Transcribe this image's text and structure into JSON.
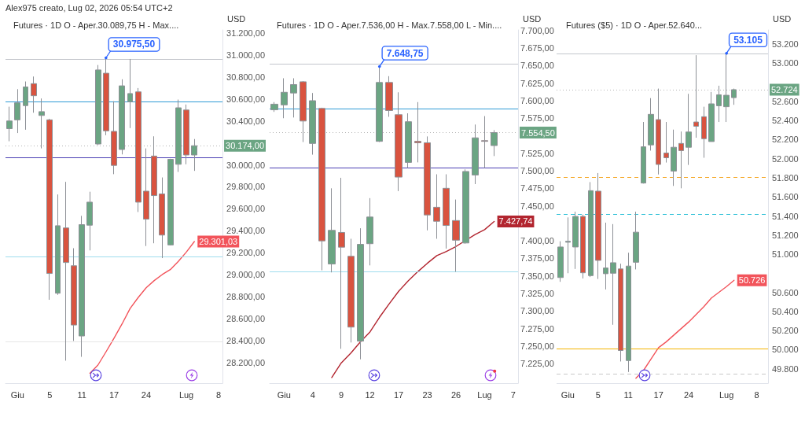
{
  "chart_data": [
    {
      "type": "candlestick",
      "title": "Futures · 1D O - Aper.30.089,75 H - Max....",
      "ylabel": "USD",
      "categories": [
        null,
        "Giu",
        null,
        null,
        null,
        "5",
        null,
        null,
        null,
        "11",
        null,
        null,
        null,
        "17",
        null,
        null,
        null,
        "24",
        null,
        null,
        null,
        null,
        "Lug",
        null,
        null,
        null,
        "8"
      ],
      "ohlc": [
        [
          30330,
          30530,
          30215,
          30400
        ],
        [
          30410,
          30690,
          30290,
          30565
        ],
        [
          30540,
          30760,
          30320,
          30710
        ],
        [
          30740,
          30805,
          30475,
          30630
        ],
        [
          30450,
          30605,
          30150,
          30485
        ],
        [
          30410,
          30420,
          28770,
          29010
        ],
        [
          28830,
          29730,
          28815,
          29445
        ],
        [
          29425,
          29845,
          28215,
          29110
        ],
        [
          29080,
          29240,
          28395,
          28540
        ],
        [
          28440,
          29535,
          28250,
          29455
        ],
        [
          29450,
          29755,
          29220,
          29660
        ],
        [
          30190,
          30910,
          30180,
          30865
        ],
        [
          30835,
          30975.5,
          30270,
          30310
        ],
        [
          30305,
          30580,
          29915,
          29995
        ],
        [
          30140,
          30780,
          30095,
          30720
        ],
        [
          30575,
          30965,
          30335,
          30650
        ],
        [
          30665,
          30700,
          29570,
          29660
        ],
        [
          29760,
          30150,
          29260,
          29505
        ],
        [
          30080,
          30260,
          29285,
          29720
        ],
        [
          29735,
          29885,
          29150,
          29360
        ],
        [
          29270,
          30055,
          29265,
          30050
        ],
        [
          30005,
          30595,
          29935,
          30520
        ],
        [
          30500,
          30550,
          30005,
          30090
        ],
        [
          30089.75,
          30235,
          29945,
          30174
        ],
        null,
        null,
        null
      ],
      "colors": [
        "#6ba583",
        "#6ba583",
        "#6ba583",
        "#d9533f",
        "#6ba583",
        "#d9533f",
        "#6ba583",
        "#d9533f",
        "#d9533f",
        "#6ba583",
        "#6ba583",
        "#6ba583",
        "#d9533f",
        "#d9533f",
        "#6ba583",
        "#6ba583",
        "#d9533f",
        "#d9533f",
        "#d9533f",
        "#d9533f",
        "#6ba583",
        "#6ba583",
        "#d9533f",
        "#6ba583",
        null,
        null,
        null
      ],
      "series": [
        {
          "type": "line",
          "color": "#f2545b",
          "values": [
            null,
            null,
            null,
            null,
            null,
            null,
            null,
            null,
            null,
            null,
            28100,
            28175,
            28295,
            28420,
            28550,
            28690,
            28790,
            28880,
            28945,
            29000,
            29045,
            29120,
            29205,
            29301.03,
            null,
            null,
            null
          ],
          "value_labels": [
            null,
            null,
            null,
            null,
            null,
            null,
            null,
            null,
            null,
            null,
            null,
            null,
            null,
            null,
            null,
            null,
            null,
            null,
            null,
            null,
            null,
            null,
            null,
            "29.301,03",
            null,
            null,
            null
          ]
        }
      ],
      "ylim": [
        28010,
        31230
      ],
      "yticks": [
        {
          "value": 28200,
          "label": "28.200,00"
        },
        {
          "value": 28400,
          "label": "28.400,00"
        },
        {
          "value": 28600,
          "label": "28.600,00"
        },
        {
          "value": 28800,
          "label": "28.800,00"
        },
        {
          "value": 29000,
          "label": "29.000,00"
        },
        {
          "value": 29200,
          "label": "29.200,00"
        },
        {
          "value": 29400,
          "label": "29.400,00"
        },
        {
          "value": 29600,
          "label": "29.600,00"
        },
        {
          "value": 29800,
          "label": "29.800,00"
        },
        {
          "value": 30000,
          "label": "30.000,00"
        },
        {
          "value": 30400,
          "label": "30.400,00"
        },
        {
          "value": 30600,
          "label": "30.600,00"
        },
        {
          "value": 30800,
          "label": "30.800,00"
        },
        {
          "value": 31000,
          "label": "31.000,00"
        },
        {
          "value": 31200,
          "label": "31.200,00"
        }
      ],
      "ref_lines": [
        {
          "axis": "y",
          "value": 30960,
          "color": "#c3c6cc"
        },
        {
          "axis": "y",
          "value": 30575,
          "color": "#2e9bd6"
        },
        {
          "axis": "y",
          "value": 30065,
          "color": "#4b3fb4"
        },
        {
          "axis": "y",
          "value": 29160,
          "color": "#9fdcee"
        },
        {
          "axis": "y",
          "value": 28390,
          "color": "#e6e6e6"
        },
        {
          "axis": "y",
          "value": 30174,
          "label": "30.174,00",
          "color": "#b5b5b5",
          "line_style": "dotted"
        }
      ],
      "annotations": [
        "Alex975 creato, Lug 02, 2026 05:54 UTC+2",
        {
          "text": "30.975,50",
          "y": 30975.5
        }
      ]
    },
    {
      "type": "candlestick",
      "title": "Futures · 1D O - Aper.7.536,00 H - Max.7.558,00 L - Min....",
      "ylabel": "USD",
      "categories": [
        null,
        "Giu",
        null,
        null,
        "4",
        null,
        null,
        "9",
        null,
        null,
        "12",
        null,
        null,
        "17",
        null,
        null,
        "23",
        null,
        null,
        "26",
        null,
        null,
        "Lug",
        null,
        null,
        "7"
      ],
      "ohlc": [
        [
          7587,
          7598,
          7584,
          7595
        ],
        [
          7594,
          7632,
          7575,
          7612
        ],
        [
          7611,
          7632,
          7576,
          7623
        ],
        [
          7627,
          7628,
          7541,
          7571
        ],
        [
          7539,
          7611,
          7523,
          7600
        ],
        [
          7589,
          7590,
          7358,
          7400
        ],
        [
          7367,
          7475,
          7355,
          7415
        ],
        [
          7412,
          7490,
          7246,
          7391
        ],
        [
          7378,
          7403,
          7255,
          7277
        ],
        [
          7257,
          7418,
          7231,
          7395
        ],
        [
          7396,
          7461,
          7365,
          7434
        ],
        [
          7542,
          7648.75,
          7541,
          7626
        ],
        [
          7626,
          7635,
          7577,
          7586
        ],
        [
          7580,
          7612,
          7471,
          7491
        ],
        [
          7512,
          7582,
          7504,
          7570
        ],
        [
          7542,
          7598,
          7512,
          7540
        ],
        [
          7540,
          7549,
          7415,
          7437
        ],
        [
          7448,
          7495,
          7403,
          7428
        ],
        [
          7475,
          7495,
          7389,
          7422
        ],
        [
          7429,
          7459,
          7356,
          7401
        ],
        [
          7397,
          7502,
          7396,
          7499
        ],
        [
          7494,
          7566,
          7481,
          7547
        ],
        [
          7543,
          7578,
          7504,
          7542
        ],
        [
          7536,
          7558,
          7521,
          7554.5
        ],
        null,
        null
      ],
      "colors": [
        "#6ba583",
        "#6ba583",
        "#6ba583",
        "#d9533f",
        "#6ba583",
        "#d9533f",
        "#6ba583",
        "#d9533f",
        "#d9533f",
        "#6ba583",
        "#6ba583",
        "#6ba583",
        "#d9533f",
        "#d9533f",
        "#6ba583",
        "#d9533f",
        "#d9533f",
        "#d9533f",
        "#d9533f",
        "#d9533f",
        "#6ba583",
        "#6ba583",
        "#d9533f",
        "#6ba583",
        null,
        null
      ],
      "series": [
        {
          "type": "line",
          "color": "#b2252f",
          "values": [
            null,
            null,
            null,
            null,
            null,
            null,
            7205,
            7226,
            7240,
            7256,
            7270,
            7291,
            7310,
            7328,
            7343,
            7356,
            7368,
            7379,
            7385,
            7392,
            null,
            7409,
            7416,
            7427.74,
            null,
            null
          ],
          "value_labels": [
            null,
            null,
            null,
            null,
            null,
            null,
            null,
            null,
            null,
            null,
            null,
            null,
            null,
            null,
            null,
            null,
            null,
            null,
            null,
            null,
            null,
            null,
            null,
            "7.427,74",
            null,
            null
          ]
        }
      ],
      "ylim": [
        7197,
        7701
      ],
      "yticks": [
        {
          "value": 7225,
          "label": "7.225,00"
        },
        {
          "value": 7250,
          "label": "7.250,00"
        },
        {
          "value": 7275,
          "label": "7.275,00"
        },
        {
          "value": 7300,
          "label": "7.300,00"
        },
        {
          "value": 7325,
          "label": "7.325,00"
        },
        {
          "value": 7350,
          "label": "7.350,00"
        },
        {
          "value": 7375,
          "label": "7.375,00"
        },
        {
          "value": 7400,
          "label": "7.400,00"
        },
        {
          "value": 7450,
          "label": "7.450,00"
        },
        {
          "value": 7475,
          "label": "7.475,00"
        },
        {
          "value": 7500,
          "label": "7.500,00"
        },
        {
          "value": 7525,
          "label": "7.525,00"
        },
        {
          "value": 7575,
          "label": "7.575,00"
        },
        {
          "value": 7600,
          "label": "7.600,00"
        },
        {
          "value": 7625,
          "label": "7.625,00"
        },
        {
          "value": 7650,
          "label": "7.650,00"
        },
        {
          "value": 7675,
          "label": "7.675,00"
        },
        {
          "value": 7700,
          "label": "7.700,00"
        }
      ],
      "ref_lines": [
        {
          "axis": "y",
          "value": 7652,
          "color": "#c3c6cc"
        },
        {
          "axis": "y",
          "value": 7588,
          "color": "#2e9bd6"
        },
        {
          "axis": "y",
          "value": 7504,
          "color": "#4b3fb4"
        },
        {
          "axis": "y",
          "value": 7356,
          "color": "#9fdcee"
        },
        {
          "axis": "y",
          "value": 7554.5,
          "label": "7.554,50",
          "color": "#b5b5b5",
          "line_style": "dotted"
        }
      ],
      "annotations": [
        {
          "text": "7.648,75",
          "y": 7648.75
        }
      ]
    },
    {
      "type": "candlestick",
      "title": "Futures ($5) · 1D O - Aper.52.640...",
      "ylabel": "USD",
      "categories": [
        null,
        "Giu",
        null,
        null,
        null,
        "5",
        null,
        null,
        null,
        "11",
        null,
        null,
        null,
        "17",
        null,
        null,
        null,
        "24",
        null,
        null,
        null,
        null,
        "Lug",
        null,
        null,
        null,
        "8",
        null
      ],
      "ohlc": [
        [
          50755,
          51135,
          50710,
          51075
        ],
        [
          51125,
          51385,
          50800,
          51135
        ],
        [
          51075,
          51445,
          50845,
          51395
        ],
        [
          51395,
          51415,
          50745,
          50805
        ],
        [
          50775,
          51755,
          50760,
          51665
        ],
        [
          51660,
          51850,
          50740,
          50935
        ],
        [
          50795,
          51330,
          50630,
          50855
        ],
        [
          50800,
          51315,
          50260,
          50910
        ],
        [
          50845,
          50900,
          49875,
          49990
        ],
        [
          49885,
          51015,
          49765,
          50875
        ],
        [
          50915,
          51445,
          50840,
          51230
        ],
        [
          51745,
          52385,
          51740,
          52125
        ],
        [
          52145,
          52635,
          52085,
          52465
        ],
        [
          52410,
          52735,
          51835,
          51940
        ],
        [
          52060,
          52385,
          51960,
          52010
        ],
        [
          51870,
          52305,
          51715,
          52120
        ],
        [
          52160,
          52285,
          51690,
          52085
        ],
        [
          52120,
          52680,
          51935,
          52280
        ],
        [
          52385,
          53085,
          52220,
          52340
        ],
        [
          52440,
          52545,
          52010,
          52210
        ],
        [
          52180,
          52700,
          52180,
          52575
        ],
        [
          52555,
          52765,
          52385,
          52670
        ],
        [
          52545,
          53105,
          52385,
          52665
        ],
        [
          52640,
          52735,
          52565,
          52724
        ],
        null,
        null,
        null,
        null
      ],
      "colors": [
        "#6ba583",
        "#6ba583",
        "#6ba583",
        "#d9533f",
        "#6ba583",
        "#d9533f",
        "#6ba583",
        "#6ba583",
        "#d9533f",
        "#6ba583",
        "#6ba583",
        "#6ba583",
        "#6ba583",
        "#d9533f",
        "#d9533f",
        "#6ba583",
        "#d9533f",
        "#6ba583",
        "#d9533f",
        "#d9533f",
        "#6ba583",
        "#6ba583",
        "#6ba583",
        "#6ba583",
        null,
        null,
        null,
        null
      ],
      "series": [
        {
          "type": "line",
          "color": "#f2545b",
          "values": [
            null,
            null,
            null,
            null,
            null,
            null,
            null,
            null,
            null,
            null,
            49700,
            49780,
            49900,
            50020,
            50080,
            50150,
            50220,
            50290,
            50370,
            50450,
            50540,
            50600,
            50660,
            50726,
            null,
            null,
            null,
            null
          ],
          "value_labels": [
            null,
            null,
            null,
            null,
            null,
            null,
            null,
            null,
            null,
            null,
            null,
            null,
            null,
            null,
            null,
            null,
            null,
            null,
            null,
            null,
            null,
            null,
            null,
            "50.726",
            null,
            null,
            null,
            null
          ]
        }
      ],
      "ylim": [
        49648,
        53350
      ],
      "yticks": [
        {
          "value": 49800,
          "label": "49.800"
        },
        {
          "value": 50000,
          "label": "50.000"
        },
        {
          "value": 50200,
          "label": "50.200"
        },
        {
          "value": 50400,
          "label": "50.400"
        },
        {
          "value": 50600,
          "label": "50.600"
        },
        {
          "value": 51000,
          "label": "51.000"
        },
        {
          "value": 51200,
          "label": "51.200"
        },
        {
          "value": 51400,
          "label": "51.400"
        },
        {
          "value": 51600,
          "label": "51.600"
        },
        {
          "value": 51800,
          "label": "51.800"
        },
        {
          "value": 52000,
          "label": "52.000"
        },
        {
          "value": 52200,
          "label": "52.200"
        },
        {
          "value": 52400,
          "label": "52.400"
        },
        {
          "value": 52600,
          "label": "52.600"
        },
        {
          "value": 53000,
          "label": "53.000"
        },
        {
          "value": 53200,
          "label": "53.200"
        }
      ],
      "ref_lines": [
        {
          "axis": "y",
          "value": 53100,
          "color": "#c3c6cc"
        },
        {
          "axis": "y",
          "value": 52724,
          "label": "52.724",
          "color": "#b5b5b5",
          "line_style": "dotted"
        },
        {
          "axis": "y",
          "value": 51810,
          "color": "#f5a623",
          "line_style": "dashed"
        },
        {
          "axis": "y",
          "value": 51416,
          "color": "#2bbfd6",
          "line_style": "dashed"
        },
        {
          "axis": "y",
          "value": 50010,
          "color": "#f5b400"
        },
        {
          "axis": "y",
          "value": 49745,
          "color": "#c8c8c8",
          "line_style": "dashed"
        }
      ],
      "annotations": [
        {
          "text": "53.105",
          "y": 53105
        }
      ]
    }
  ]
}
